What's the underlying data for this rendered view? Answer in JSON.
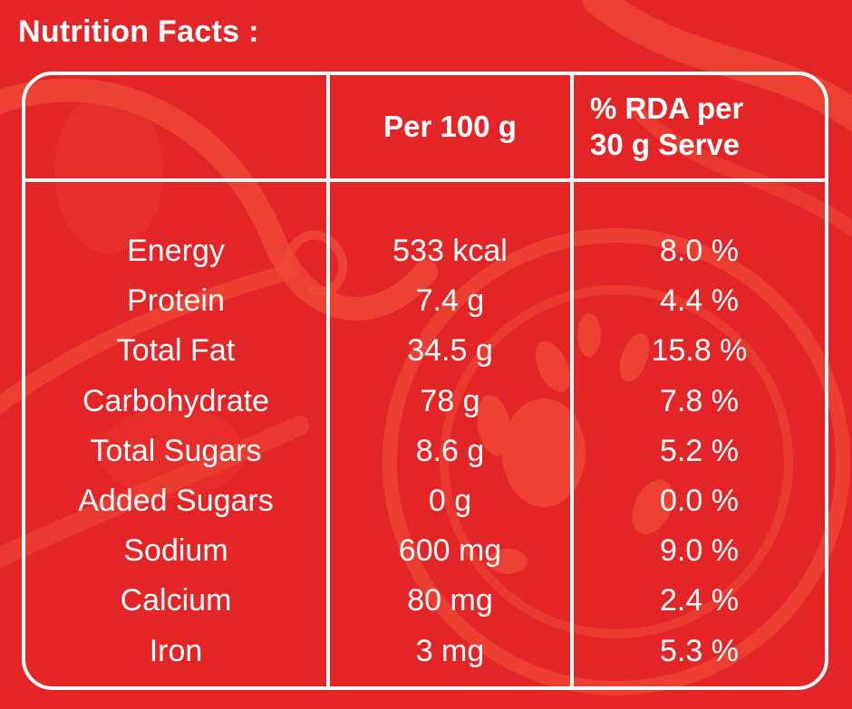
{
  "title": "Nutrition Facts :",
  "headers": {
    "per100": "Per 100 g",
    "rda_line1": "% RDA per",
    "rda_line2": "30 g Serve"
  },
  "rows": [
    {
      "nutrient": "Energy",
      "per100": "533 kcal",
      "rda": "8.0 %"
    },
    {
      "nutrient": "Protein",
      "per100": "7.4 g",
      "rda": "4.4 %"
    },
    {
      "nutrient": "Total Fat",
      "per100": "34.5 g",
      "rda": "15.8 %"
    },
    {
      "nutrient": "Carbohydrate",
      "per100": "78 g",
      "rda": "7.8 %"
    },
    {
      "nutrient": "Total Sugars",
      "per100": "8.6 g",
      "rda": "5.2 %"
    },
    {
      "nutrient": "Added Sugars",
      "per100": "0 g",
      "rda": "0.0 %"
    },
    {
      "nutrient": "Sodium",
      "per100": "600 mg",
      "rda": "9.0 %"
    },
    {
      "nutrient": "Calcium",
      "per100": "80 mg",
      "rda": "2.4 %"
    },
    {
      "nutrient": "Iron",
      "per100": "3 mg",
      "rda": "5.3 %"
    }
  ],
  "colors": {
    "background": "#e42528",
    "art": "#ef4a36",
    "text": "#ffffff"
  }
}
